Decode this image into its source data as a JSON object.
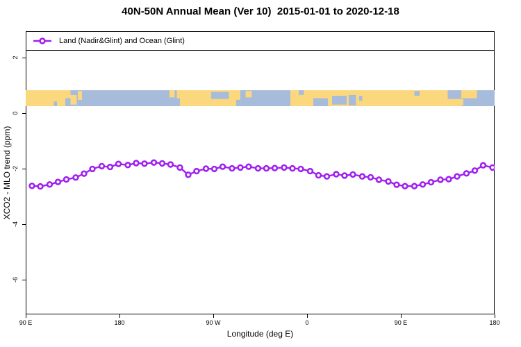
{
  "title": "40N-50N Annual Mean (Ver 10)  2015-01-01 to 2020-12-18",
  "legend": {
    "label": "Land (Nadir&Glint) and Ocean (Glint)",
    "marker": "open-circle-on-line",
    "marker_color": "#A020F0",
    "position": "top-left-full-width-box"
  },
  "chart_data": {
    "type": "line",
    "title": "40N-50N Annual Mean (Ver 10)  2015-01-01 to 2020-12-18",
    "xlabel": "Longitude (deg E)",
    "ylabel": "XCO2 - MLO trend (ppm)",
    "xlim": [
      90,
      540
    ],
    "ylim": [
      -7.25,
      2.95
    ],
    "grid": false,
    "x_ticks": {
      "values": [
        90,
        180,
        270,
        360,
        450,
        540
      ],
      "labels": [
        "90 E",
        "180",
        "90 W",
        "0",
        "90 E",
        "180"
      ]
    },
    "y_ticks": {
      "values": [
        2,
        0,
        -2,
        -4,
        -6
      ],
      "labels": [
        "2",
        "0",
        "-2",
        "-4",
        "-6"
      ]
    },
    "series": [
      {
        "name": "Land (Nadir&Glint) and Ocean (Glint)",
        "color": "#A020F0",
        "marker": "open-circle",
        "x": [
          96,
          104,
          113,
          121,
          129,
          138,
          146,
          154,
          163,
          171,
          179,
          188,
          196,
          204,
          213,
          221,
          229,
          238,
          246,
          254,
          263,
          271,
          279,
          288,
          296,
          304,
          313,
          321,
          329,
          338,
          346,
          354,
          363,
          371,
          379,
          388,
          396,
          404,
          413,
          421,
          429,
          438,
          446,
          454,
          463,
          471,
          479,
          488,
          496,
          504,
          513,
          521,
          529,
          538
        ],
        "y": [
          -2.62,
          -2.64,
          -2.57,
          -2.48,
          -2.39,
          -2.32,
          -2.18,
          -2.01,
          -1.91,
          -1.94,
          -1.83,
          -1.87,
          -1.8,
          -1.82,
          -1.78,
          -1.81,
          -1.85,
          -1.96,
          -2.22,
          -2.09,
          -2.0,
          -2.01,
          -1.93,
          -1.99,
          -1.96,
          -1.93,
          -1.99,
          -1.99,
          -1.98,
          -1.96,
          -1.99,
          -2.01,
          -2.09,
          -2.24,
          -2.28,
          -2.2,
          -2.25,
          -2.21,
          -2.28,
          -2.31,
          -2.4,
          -2.46,
          -2.58,
          -2.63,
          -2.63,
          -2.57,
          -2.49,
          -2.4,
          -2.38,
          -2.28,
          -2.17,
          -2.07,
          -1.88,
          -1.96
        ]
      }
    ],
    "map_strip": {
      "description": "land/ocean world band across 40N-50N drawn near y=0.5",
      "value_top": 0.825,
      "value_bottom": 0.25,
      "land_color": "#FBD87D",
      "ocean_color": "#A7BCDB",
      "land_segments": [
        [
          90,
          128
        ],
        [
          235,
          296
        ],
        [
          344,
          508
        ]
      ],
      "patches": [
        {
          "type": "ocean",
          "x0": 117,
          "x1": 120,
          "f0": 0.7,
          "f1": 1
        },
        {
          "type": "land",
          "x0": 128,
          "x1": 133,
          "f0": 0.0,
          "f1": 0.5
        },
        {
          "type": "land",
          "x0": 133,
          "x1": 139,
          "f0": 0.3,
          "f1": 0.9
        },
        {
          "type": "land",
          "x0": 140,
          "x1": 144,
          "f0": 0.05,
          "f1": 0.6
        },
        {
          "type": "land",
          "x0": 228,
          "x1": 233,
          "f0": 0.0,
          "f1": 0.45
        },
        {
          "type": "ocean",
          "x0": 235,
          "x1": 238,
          "f0": 0.5,
          "f1": 1
        },
        {
          "type": "ocean",
          "x0": 268,
          "x1": 285,
          "f0": 0.1,
          "f1": 0.55
        },
        {
          "type": "ocean",
          "x0": 292,
          "x1": 296,
          "f0": 0.6,
          "f1": 1
        },
        {
          "type": "land",
          "x0": 301,
          "x1": 307,
          "f0": 0.05,
          "f1": 0.45
        },
        {
          "type": "ocean",
          "x0": 352,
          "x1": 357,
          "f0": 0.0,
          "f1": 0.3
        },
        {
          "type": "ocean",
          "x0": 366,
          "x1": 380,
          "f0": 0.5,
          "f1": 1
        },
        {
          "type": "ocean",
          "x0": 384,
          "x1": 398,
          "f0": 0.35,
          "f1": 0.9
        },
        {
          "type": "ocean",
          "x0": 400,
          "x1": 407,
          "f0": 0.3,
          "f1": 0.95
        },
        {
          "type": "ocean",
          "x0": 410,
          "x1": 413,
          "f0": 0.35,
          "f1": 0.65
        },
        {
          "type": "ocean",
          "x0": 463,
          "x1": 468,
          "f0": 0.05,
          "f1": 0.35
        },
        {
          "type": "ocean",
          "x0": 495,
          "x1": 508,
          "f0": 0.0,
          "f1": 0.55
        },
        {
          "type": "land",
          "x0": 505,
          "x1": 510,
          "f0": 0.55,
          "f1": 0.95
        },
        {
          "type": "land",
          "x0": 508,
          "x1": 523,
          "f0": 0.0,
          "f1": 0.5
        }
      ]
    }
  }
}
